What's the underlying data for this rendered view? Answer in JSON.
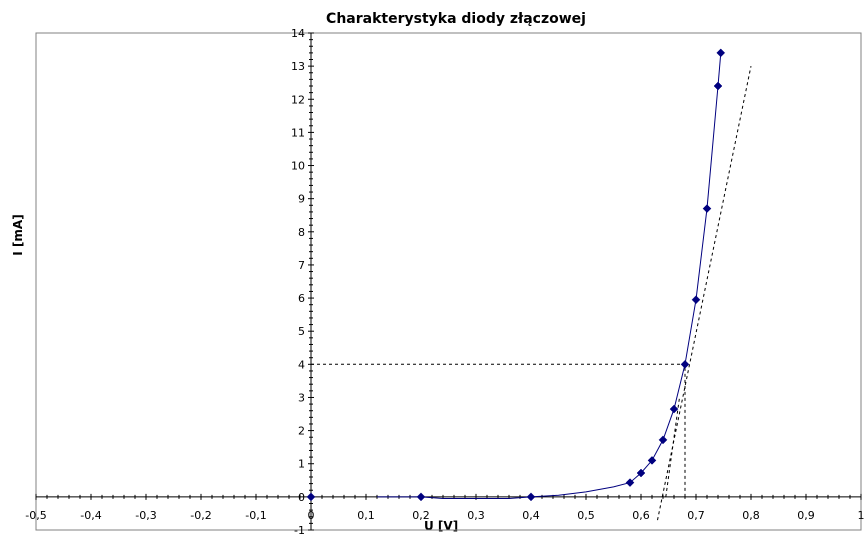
{
  "chart_data": {
    "type": "scatter",
    "title": "Charakterystyka diody złączowej",
    "xlabel": "U [V]",
    "ylabel": "I [mA]",
    "xlim": [
      -0.5,
      1.0
    ],
    "ylim": [
      -1,
      14
    ],
    "x_ticks": [
      -0.5,
      -0.4,
      -0.3,
      -0.2,
      -0.1,
      0,
      0.1,
      0.2,
      0.3,
      0.4,
      0.5,
      0.6,
      0.7,
      0.8,
      0.9,
      1
    ],
    "x_tick_labels": [
      "-0,5",
      "-0,4",
      "-0,3",
      "-0,2",
      "-0,1",
      "0",
      "0,1",
      "0,2",
      "0,3",
      "0,4",
      "0,5",
      "0,6",
      "0,7",
      "0,8",
      "0,9",
      "1"
    ],
    "y_ticks": [
      -1,
      0,
      1,
      2,
      3,
      4,
      5,
      6,
      7,
      8,
      9,
      10,
      11,
      12,
      13,
      14
    ],
    "y_tick_labels": [
      "-1",
      "0",
      "1",
      "2",
      "3",
      "4",
      "5",
      "6",
      "7",
      "8",
      "9",
      "10",
      "11",
      "12",
      "13",
      "14"
    ],
    "grid": false,
    "series": [
      {
        "style": "line-with-diamond-markers",
        "color": "#00007f",
        "points": [
          [
            0,
            0
          ],
          [
            0.2,
            0.0
          ],
          [
            0.4,
            0.0
          ],
          [
            0.58,
            0.43
          ],
          [
            0.6,
            0.72
          ],
          [
            0.62,
            1.1
          ],
          [
            0.64,
            1.72
          ],
          [
            0.66,
            2.65
          ],
          [
            0.68,
            4.0
          ],
          [
            0.7,
            5.95
          ],
          [
            0.72,
            8.7
          ],
          [
            0.74,
            12.4
          ],
          [
            0.745,
            13.4
          ]
        ]
      }
    ],
    "smooth_curve": [
      [
        0.12,
        0.0
      ],
      [
        0.2,
        0.0
      ],
      [
        0.24,
        -0.05
      ],
      [
        0.36,
        -0.05
      ],
      [
        0.4,
        0.0
      ],
      [
        0.45,
        0.05
      ],
      [
        0.5,
        0.15
      ],
      [
        0.55,
        0.3
      ],
      [
        0.58,
        0.43
      ],
      [
        0.6,
        0.72
      ],
      [
        0.62,
        1.1
      ],
      [
        0.64,
        1.72
      ],
      [
        0.66,
        2.65
      ],
      [
        0.68,
        4.0
      ],
      [
        0.7,
        5.95
      ],
      [
        0.72,
        8.7
      ],
      [
        0.74,
        12.4
      ],
      [
        0.745,
        13.4
      ]
    ],
    "tangent_line": {
      "style": "dashed",
      "points": [
        [
          0.63,
          -0.7
        ],
        [
          0.8,
          13.0
        ]
      ]
    },
    "reference_lines": [
      {
        "style": "dashed",
        "points": [
          [
            0,
            4
          ],
          [
            0.68,
            4
          ]
        ]
      },
      {
        "style": "dashed",
        "points": [
          [
            0.68,
            0
          ],
          [
            0.68,
            4
          ]
        ]
      }
    ],
    "extra_dashed_line": {
      "style": "dashed",
      "points": [
        [
          0.645,
          0
        ],
        [
          0.67,
          3.0
        ]
      ]
    }
  }
}
